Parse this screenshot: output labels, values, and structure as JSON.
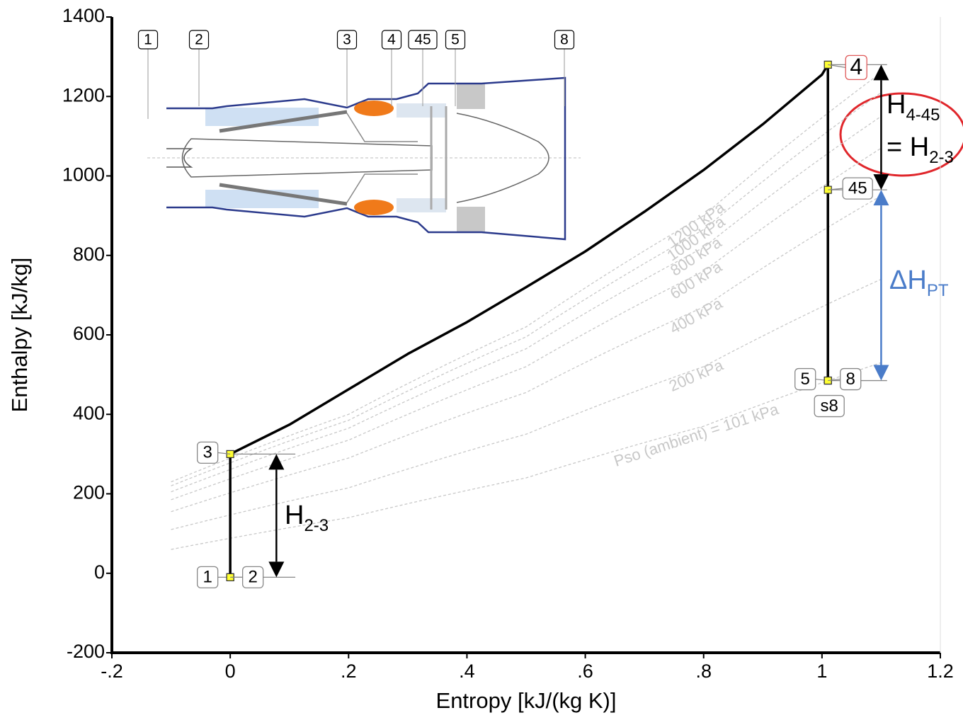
{
  "chart_data": {
    "type": "line",
    "x_label": "Entropy [kJ/(kg K)]",
    "y_label": "Enthalpy [kJ/kg]",
    "xlim": [
      -0.2,
      1.2
    ],
    "ylim": [
      -200,
      1400
    ],
    "xticks": [
      {
        "value": -0.2,
        "label": "-.2"
      },
      0,
      {
        "value": 0.2,
        "label": ".2"
      },
      {
        "value": 0.4,
        "label": ".4"
      },
      {
        "value": 0.6,
        "label": ".6"
      },
      {
        "value": 0.8,
        "label": ".8"
      },
      1,
      1.2
    ],
    "yticks": [
      -200,
      0,
      200,
      400,
      600,
      800,
      1000,
      1200,
      1400
    ],
    "cycle": {
      "color": "#000000",
      "x": [
        0,
        0,
        0.1,
        0.2,
        0.3,
        0.4,
        0.5,
        0.6,
        0.7,
        0.8,
        0.9,
        1.0,
        1.01,
        1.01
      ],
      "values": [
        -10,
        300,
        374,
        463,
        552,
        632,
        720,
        810,
        910,
        1015,
        1130,
        1255,
        1280,
        485
      ]
    },
    "isobars": [
      {
        "label": "1200 kPa",
        "x": [
          -0.1,
          0.2,
          0.5,
          0.8,
          1.1
        ],
        "values": [
          230,
          400,
          620,
          900,
          1260
        ]
      },
      {
        "label": "1000 kPa",
        "x": [
          -0.1,
          0.2,
          0.5,
          0.8,
          1.1
        ],
        "values": [
          220,
          385,
          595,
          865,
          1210
        ]
      },
      {
        "label": "800 kPa",
        "x": [
          -0.1,
          0.2,
          0.5,
          0.8,
          1.1
        ],
        "values": [
          205,
          365,
          565,
          820,
          1150
        ]
      },
      {
        "label": "600 kPa",
        "x": [
          -0.1,
          0.2,
          0.5,
          0.8,
          1.1
        ],
        "values": [
          185,
          335,
          520,
          760,
          1070
        ]
      },
      {
        "label": "400 kPa",
        "x": [
          -0.1,
          0.2,
          0.5,
          0.8,
          1.1
        ],
        "values": [
          155,
          290,
          455,
          670,
          950
        ]
      },
      {
        "label": "200 kPa",
        "x": [
          -0.1,
          0.2,
          0.5,
          0.8,
          1.1
        ],
        "values": [
          110,
          215,
          350,
          520,
          740
        ]
      },
      {
        "label": "Pso (ambient) = 101 kPa",
        "x": [
          -0.1,
          0.2,
          0.5,
          0.8,
          1.1
        ],
        "values": [
          60,
          140,
          240,
          370,
          530
        ]
      }
    ],
    "states": [
      {
        "label": "1",
        "x": 0,
        "y": -10
      },
      {
        "label": "2",
        "x": 0,
        "y": -10
      },
      {
        "label": "3",
        "x": 0,
        "y": 300
      },
      {
        "label": "4",
        "x": 1.01,
        "y": 1280
      },
      {
        "label": "45",
        "x": 1.01,
        "y": 965
      },
      {
        "label": "5",
        "x": 1.01,
        "y": 485
      },
      {
        "label": "8",
        "x": 1.01,
        "y": 485
      },
      {
        "label": "s8",
        "x": 1.01,
        "y": 485
      }
    ],
    "annotations": [
      {
        "text": "H",
        "subscript": "2-3"
      },
      {
        "text": "H",
        "subscript": "4-45"
      },
      {
        "text": "= H",
        "subscript": "2-3"
      },
      {
        "text": "ΔH",
        "subscript": "PT"
      }
    ],
    "stations": [
      "1",
      "2",
      "3",
      "4",
      "45",
      "5",
      "8"
    ]
  }
}
